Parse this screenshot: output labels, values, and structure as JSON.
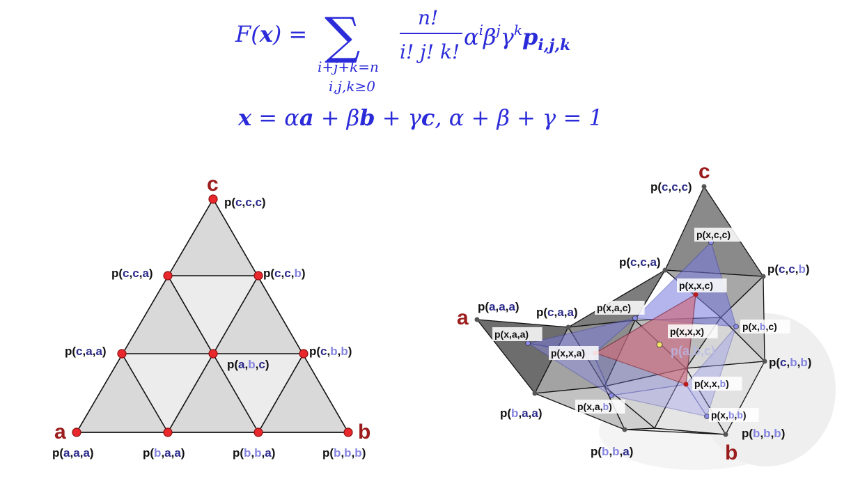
{
  "formula": {
    "line1_lhs": "F(x) =",
    "sum_symbol": "∑",
    "sum_sub1": "i+j+k=n",
    "sum_sub2": "i,j,k≥0",
    "frac_num": "n!",
    "frac_den": "i! j! k!",
    "term": "α",
    "line2": "x = αa + βb + γc,  α + β + γ = 1"
  },
  "left_diagram": {
    "vertex_a": "a",
    "vertex_b": "b",
    "vertex_c": "c",
    "points": [
      {
        "label": "p(c,c,c)",
        "p": [
          "c",
          "c",
          "c"
        ]
      },
      {
        "label": "p(c,c,a)",
        "p": [
          "c",
          "c",
          "a"
        ]
      },
      {
        "label": "p(c,c,b)",
        "p": [
          "c",
          "c",
          "b"
        ]
      },
      {
        "label": "p(c,a,a)",
        "p": [
          "c",
          "a",
          "a"
        ]
      },
      {
        "label": "p(a,b,c)",
        "p": [
          "a",
          "b",
          "c"
        ]
      },
      {
        "label": "p(c,b,b)",
        "p": [
          "c",
          "b",
          "b"
        ]
      },
      {
        "label": "p(a,a,a)",
        "p": [
          "a",
          "a",
          "a"
        ]
      },
      {
        "label": "p(b,a,a)",
        "p": [
          "b",
          "a",
          "a"
        ]
      },
      {
        "label": "p(b,b,a)",
        "p": [
          "b",
          "b",
          "a"
        ]
      },
      {
        "label": "p(b,b,b)",
        "p": [
          "b",
          "b",
          "b"
        ]
      }
    ]
  },
  "right_diagram": {
    "vertex_a": "a",
    "vertex_b": "b",
    "vertex_c": "c",
    "control_points": [
      {
        "label": "p(c,c,c)"
      },
      {
        "label": "p(c,c,a)"
      },
      {
        "label": "p(c,c,b)"
      },
      {
        "label": "p(a,a,a)"
      },
      {
        "label": "p(c,a,a)"
      },
      {
        "label": "p(c,b,b)"
      },
      {
        "label": "p(b,a,a)"
      },
      {
        "label": "p(b,b,a)"
      },
      {
        "label": "p(b,b,b)"
      }
    ],
    "blossom_points": [
      {
        "label": "p(x,c,c)"
      },
      {
        "label": "p(x,x,c)"
      },
      {
        "label": "p(x,a,c)"
      },
      {
        "label": "p(x,b,c)"
      },
      {
        "label": "p(x,a,a)"
      },
      {
        "label": "p(x,x,a)"
      },
      {
        "label": "p(x,x,x)"
      },
      {
        "label": "p(x,x,b)"
      },
      {
        "label": "p(x,a,b)"
      },
      {
        "label": "p(x,b,b)"
      }
    ],
    "ghost_label": "p(a,b,c)"
  }
}
